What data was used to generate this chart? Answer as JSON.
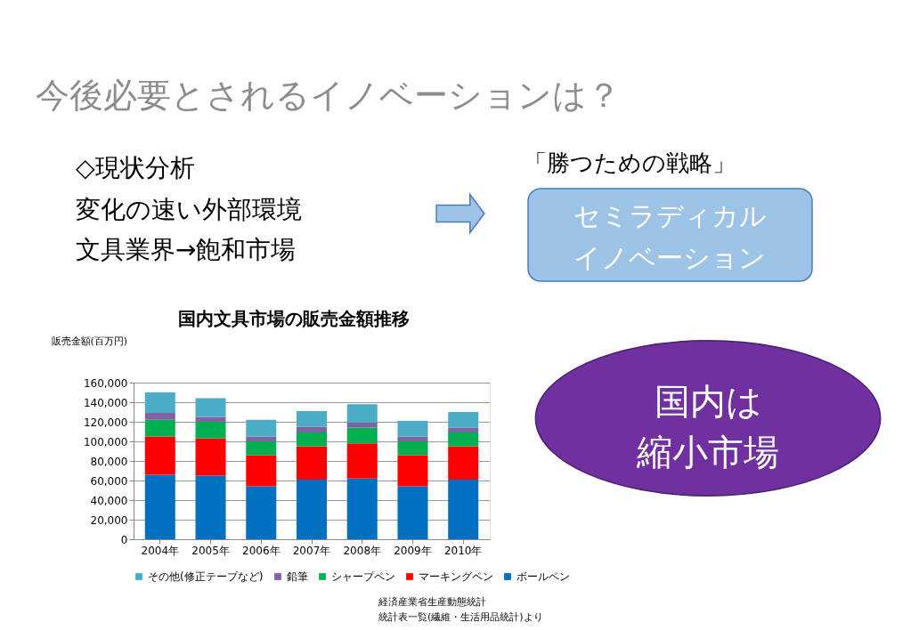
{
  "chart_data": {
    "type": "bar",
    "stacked": true,
    "title": "国内文具市場の販売金額推移",
    "ylabel": "販売金額(百万円)",
    "categories": [
      "2004年",
      "2005年",
      "2006年",
      "2007年",
      "2008年",
      "2009年",
      "2010年"
    ],
    "series": [
      {
        "name": "ボールペン",
        "color": "#0070c0",
        "values": [
          66000,
          65000,
          54000,
          61000,
          62000,
          54000,
          61000
        ]
      },
      {
        "name": "マーキングペン",
        "color": "#ff0000",
        "values": [
          39000,
          38000,
          32000,
          34000,
          36000,
          32000,
          34000
        ]
      },
      {
        "name": "シャープペン",
        "color": "#00b050",
        "values": [
          17000,
          17000,
          14000,
          14000,
          16000,
          14000,
          14000
        ]
      },
      {
        "name": "鉛筆",
        "color": "#8064a2",
        "values": [
          7000,
          5000,
          5000,
          6000,
          5000,
          5000,
          5000
        ]
      },
      {
        "name": "その他(修正テープなど)",
        "color": "#4bacc6",
        "values": [
          21000,
          19000,
          17000,
          16000,
          19000,
          16000,
          16000
        ]
      }
    ],
    "ylim": [
      0,
      160000
    ],
    "yticks": [
      {
        "value": 0,
        "label": "0"
      },
      {
        "value": 20000,
        "label": "20,000"
      },
      {
        "value": 40000,
        "label": "40,000"
      },
      {
        "value": 60000,
        "label": "60,000"
      },
      {
        "value": 80000,
        "label": "80,000"
      },
      {
        "value": 100000,
        "label": "100,000"
      },
      {
        "value": 120000,
        "label": "120,000"
      },
      {
        "value": 140000,
        "label": "140,000"
      },
      {
        "value": 160000,
        "label": "160,000"
      }
    ],
    "grid": "y",
    "legend": "bottom",
    "annotations": [
      "今後必要とされるイノベーションは？",
      "◇現状分析",
      "変化の速い外部環境",
      "文具業界→飽和市場",
      "「勝つための戦略」",
      "セミラディカル",
      "イノベーション",
      "国内は",
      "縮小市場",
      "経済産業省生産動態統計",
      "統計表一覧(繊維・生活用品統計)より"
    ]
  }
}
